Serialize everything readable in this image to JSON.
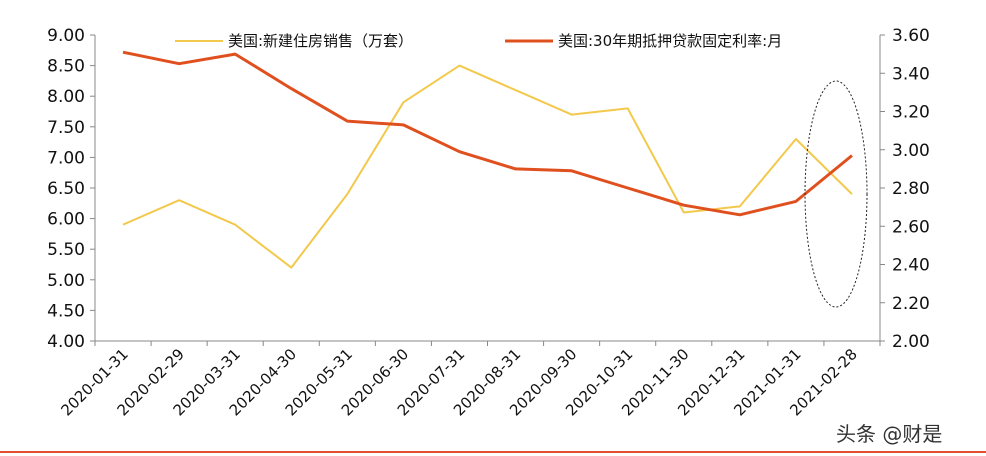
{
  "chart_data": {
    "type": "line",
    "categories": [
      "2020-01-31",
      "2020-02-29",
      "2020-03-31",
      "2020-04-30",
      "2020-05-31",
      "2020-06-30",
      "2020-07-31",
      "2020-08-31",
      "2020-09-30",
      "2020-10-31",
      "2020-11-30",
      "2020-12-31",
      "2021-01-31",
      "2021-02-28"
    ],
    "series": [
      {
        "name": "美国:新建住房销售（万套）",
        "axis": "left",
        "color": "#f2c94c",
        "values": [
          5.9,
          6.3,
          5.9,
          5.2,
          6.4,
          7.9,
          8.5,
          8.1,
          7.7,
          7.8,
          6.1,
          6.2,
          7.3,
          6.4
        ]
      },
      {
        "name": "美国:30年期抵押贷款固定利率:月",
        "axis": "right",
        "color": "#e0501f",
        "values": [
          3.51,
          3.45,
          3.5,
          3.32,
          3.15,
          3.13,
          2.99,
          2.9,
          2.89,
          2.8,
          2.71,
          2.66,
          2.73,
          2.97
        ]
      }
    ],
    "ylim_left": [
      4.0,
      9.0
    ],
    "ylim_right": [
      2.0,
      3.6
    ],
    "yticks_left": [
      "9.00",
      "8.50",
      "8.00",
      "7.50",
      "7.00",
      "6.50",
      "6.00",
      "5.50",
      "5.00",
      "4.50",
      "4.00"
    ],
    "yticks_right": [
      "3.60",
      "3.40",
      "3.20",
      "3.00",
      "2.80",
      "2.60",
      "2.40",
      "2.20",
      "2.00"
    ],
    "legend_position": "top",
    "annotation": "dashed ellipse highlighting 2021-01-31 to 2021-02-28",
    "grid": false
  },
  "watermark": "头条 @财是"
}
